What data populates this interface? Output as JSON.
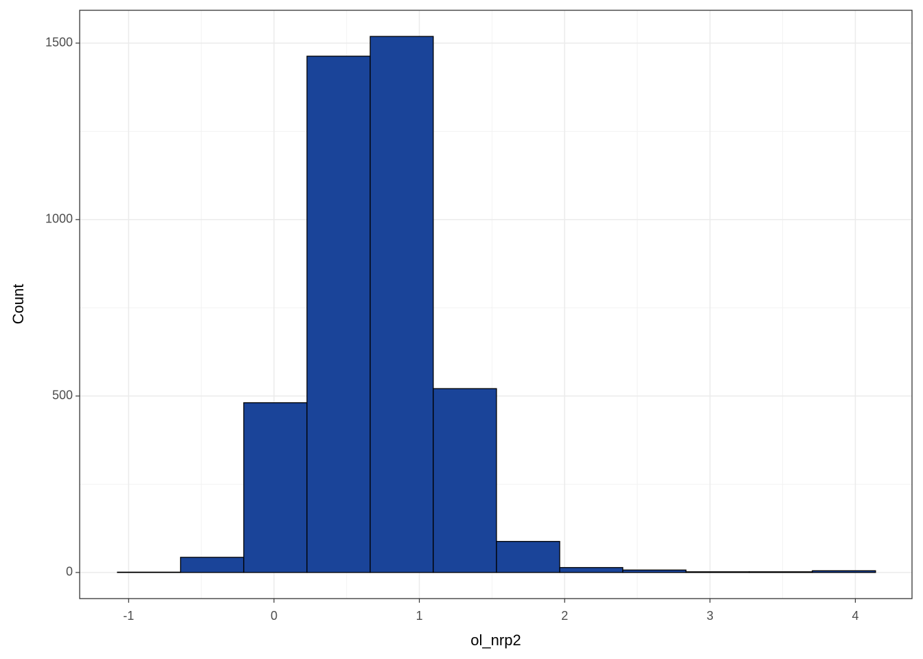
{
  "chart_data": {
    "type": "histogram",
    "x_label": "ol_nrp2",
    "y_label": "Count",
    "bins": [
      -1.077,
      -0.643,
      -0.208,
      0.227,
      0.662,
      1.096,
      1.531,
      1.966,
      2.4,
      2.835,
      3.27,
      3.704,
      4.139
    ],
    "values": [
      1,
      43,
      481,
      1463,
      1519,
      521,
      88,
      14,
      7,
      2,
      2,
      5
    ],
    "color": "#1a4499",
    "edge_color": "#000000",
    "xlim": [
      -1.337,
      4.39
    ],
    "xticks": [
      -1,
      0,
      1,
      2,
      3,
      4
    ],
    "ylim": [
      -74,
      1593
    ],
    "yticks": [
      0,
      500,
      1000,
      1500
    ],
    "grid": true
  }
}
